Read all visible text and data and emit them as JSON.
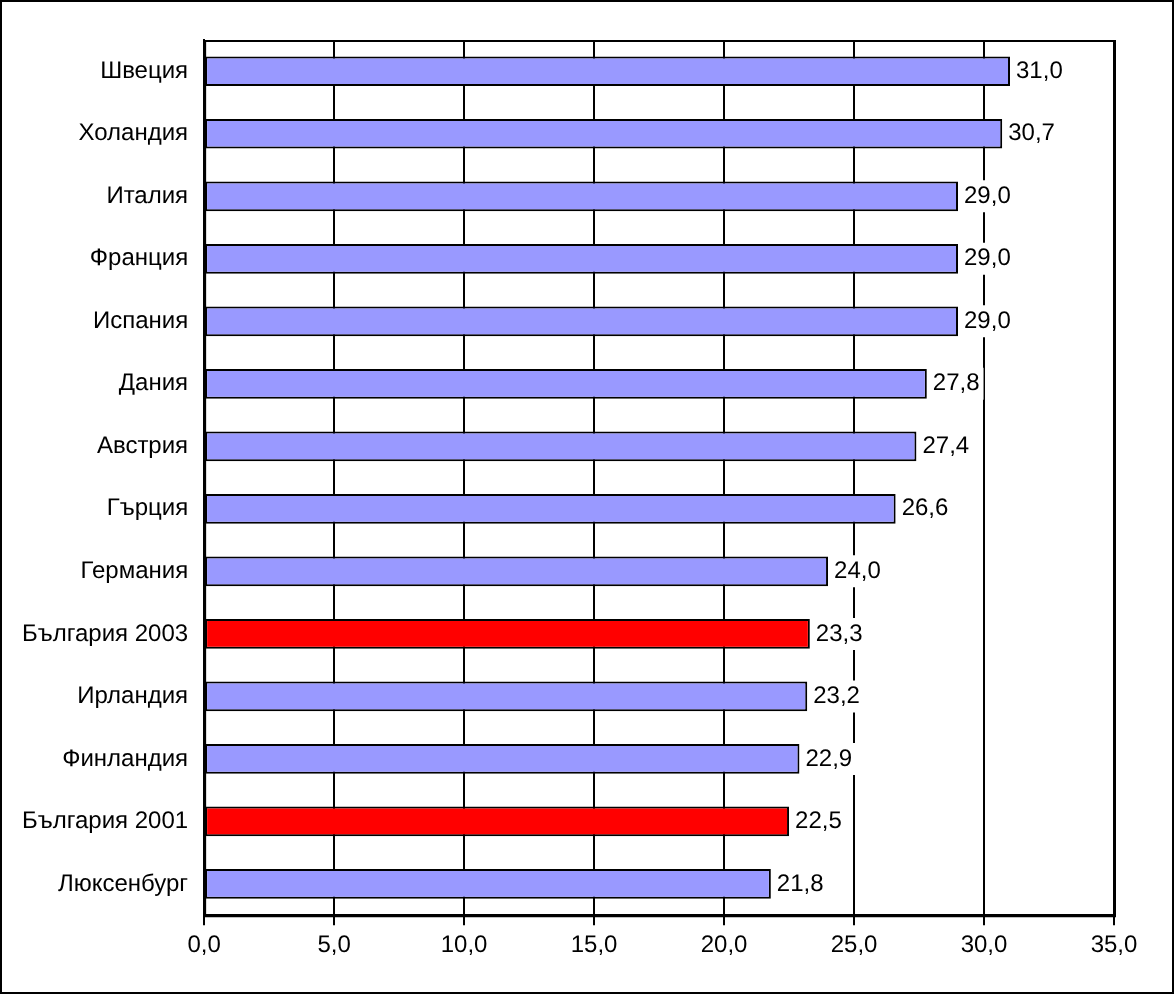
{
  "chart_data": {
    "type": "bar",
    "orientation": "horizontal",
    "categories": [
      "Швеция",
      "Холандия",
      "Италия",
      "Франция",
      "Испания",
      "Дания",
      "Австрия",
      "Гърция",
      "Германия",
      "България 2003",
      "Ирландия",
      "Финландия",
      "България 2001",
      "Люксенбург"
    ],
    "values": [
      31.0,
      30.7,
      29.0,
      29.0,
      29.0,
      27.8,
      27.4,
      26.6,
      24.0,
      23.3,
      23.2,
      22.9,
      22.5,
      21.8
    ],
    "colors": [
      "#9999ff",
      "#9999ff",
      "#9999ff",
      "#9999ff",
      "#9999ff",
      "#9999ff",
      "#9999ff",
      "#9999ff",
      "#9999ff",
      "#ff0000",
      "#9999ff",
      "#9999ff",
      "#ff0000",
      "#9999ff"
    ],
    "value_labels": [
      "31,0",
      "30,7",
      "29,0",
      "29,0",
      "29,0",
      "27,8",
      "27,4",
      "26,6",
      "24,0",
      "23,3",
      "23,2",
      "22,9",
      "22,5",
      "21,8"
    ],
    "xlim": [
      0,
      35
    ],
    "xticks": [
      {
        "value": 0,
        "label": "0,0"
      },
      {
        "value": 5,
        "label": "5,0"
      },
      {
        "value": 10,
        "label": "10,0"
      },
      {
        "value": 15,
        "label": "15,0"
      },
      {
        "value": 20,
        "label": "20,0"
      },
      {
        "value": 25,
        "label": "25,0"
      },
      {
        "value": 30,
        "label": "30,0"
      },
      {
        "value": 35,
        "label": "35,0"
      }
    ],
    "grid": "x",
    "legend": false
  }
}
